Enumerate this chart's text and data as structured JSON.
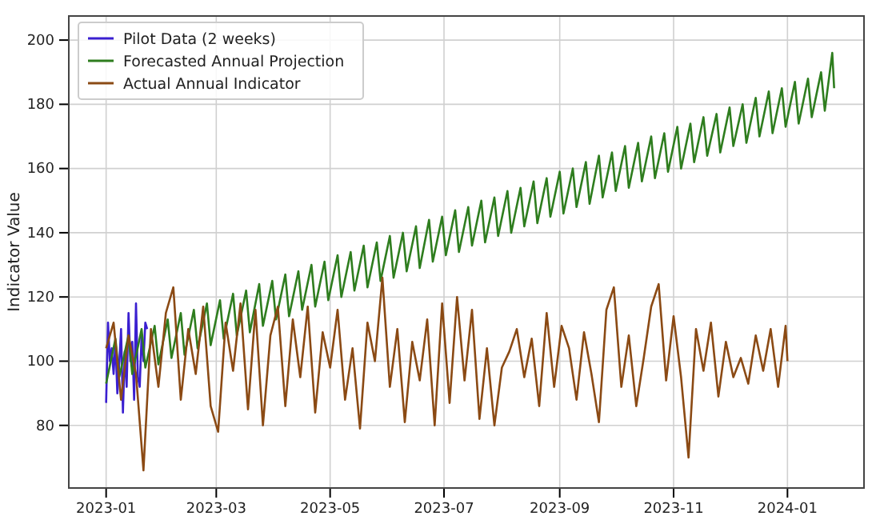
{
  "chart_data": {
    "type": "line",
    "ylabel": "Indicator Value",
    "xlim": [
      "2022-12-12",
      "2024-02-11"
    ],
    "ylim": [
      60.5,
      207.5
    ],
    "xticks": [
      "2023-01",
      "2023-03",
      "2023-05",
      "2023-07",
      "2023-09",
      "2023-11",
      "2024-01"
    ],
    "yticks": [
      80,
      100,
      120,
      140,
      160,
      180,
      200
    ],
    "grid": true,
    "legend": "top left",
    "line_style": "solid",
    "series": [
      {
        "name": "Pilot Data (2 weeks)",
        "color": "#3a1fd0",
        "x": [
          "2023-01-01",
          "2023-01-02",
          "2023-01-03",
          "2023-01-04",
          "2023-01-05",
          "2023-01-06",
          "2023-01-07",
          "2023-01-08",
          "2023-01-09",
          "2023-01-10",
          "2023-01-11",
          "2023-01-12",
          "2023-01-13",
          "2023-01-14",
          "2023-01-15",
          "2023-01-16",
          "2023-01-17",
          "2023-01-18",
          "2023-01-19",
          "2023-01-20",
          "2023-01-21",
          "2023-01-22",
          "2023-01-23"
        ],
        "values": [
          87,
          112,
          100,
          104,
          96,
          106,
          90,
          99,
          110,
          84,
          103,
          92,
          115,
          100,
          106,
          88,
          118,
          95,
          92,
          108,
          100,
          112,
          110
        ]
      },
      {
        "name": "Forecasted Annual Projection",
        "color": "#2e7d1e",
        "x": [
          "2023-01-01",
          "2023-01-06",
          "2023-01-08",
          "2023-01-13",
          "2023-01-15",
          "2023-01-20",
          "2023-01-22",
          "2023-01-27",
          "2023-01-29",
          "2023-02-03",
          "2023-02-05",
          "2023-02-10",
          "2023-02-12",
          "2023-02-17",
          "2023-02-19",
          "2023-02-24",
          "2023-02-26",
          "2023-03-03",
          "2023-03-05",
          "2023-03-10",
          "2023-03-12",
          "2023-03-17",
          "2023-03-19",
          "2023-03-24",
          "2023-03-26",
          "2023-03-31",
          "2023-04-02",
          "2023-04-07",
          "2023-04-09",
          "2023-04-14",
          "2023-04-16",
          "2023-04-21",
          "2023-04-23",
          "2023-04-28",
          "2023-04-30",
          "2023-05-05",
          "2023-05-07",
          "2023-05-12",
          "2023-05-14",
          "2023-05-19",
          "2023-05-21",
          "2023-05-26",
          "2023-05-28",
          "2023-06-02",
          "2023-06-04",
          "2023-06-09",
          "2023-06-11",
          "2023-06-16",
          "2023-06-18",
          "2023-06-23",
          "2023-06-25",
          "2023-06-30",
          "2023-07-02",
          "2023-07-07",
          "2023-07-09",
          "2023-07-14",
          "2023-07-16",
          "2023-07-21",
          "2023-07-23",
          "2023-07-28",
          "2023-07-30",
          "2023-08-04",
          "2023-08-06",
          "2023-08-11",
          "2023-08-13",
          "2023-08-18",
          "2023-08-20",
          "2023-08-25",
          "2023-08-27",
          "2023-09-01",
          "2023-09-03",
          "2023-09-08",
          "2023-09-10",
          "2023-09-15",
          "2023-09-17",
          "2023-09-22",
          "2023-09-24",
          "2023-09-29",
          "2023-10-01",
          "2023-10-06",
          "2023-10-08",
          "2023-10-13",
          "2023-10-15",
          "2023-10-20",
          "2023-10-22",
          "2023-10-27",
          "2023-10-29",
          "2023-11-03",
          "2023-11-05",
          "2023-11-10",
          "2023-11-12",
          "2023-11-17",
          "2023-11-19",
          "2023-11-24",
          "2023-11-26",
          "2023-12-01",
          "2023-12-03",
          "2023-12-08",
          "2023-12-10",
          "2023-12-15",
          "2023-12-17",
          "2023-12-22",
          "2023-12-24",
          "2023-12-29",
          "2023-12-31",
          "2024-01-05",
          "2024-01-07",
          "2024-01-12",
          "2024-01-14",
          "2024-01-19",
          "2024-01-21",
          "2024-01-25",
          "2024-01-26"
        ],
        "values": [
          93,
          107,
          95,
          108,
          96,
          110,
          98,
          111,
          99,
          113,
          101,
          115,
          102,
          116,
          104,
          118,
          105,
          119,
          107,
          121,
          108,
          122,
          109,
          124,
          111,
          125,
          113,
          127,
          114,
          128,
          116,
          130,
          117,
          131,
          119,
          133,
          120,
          134,
          122,
          136,
          123,
          137,
          125,
          139,
          126,
          140,
          128,
          142,
          129,
          144,
          131,
          145,
          133,
          147,
          134,
          148,
          136,
          150,
          137,
          151,
          139,
          153,
          140,
          154,
          142,
          156,
          143,
          157,
          145,
          159,
          146,
          160,
          148,
          162,
          149,
          164,
          151,
          165,
          153,
          167,
          154,
          168,
          156,
          170,
          157,
          171,
          159,
          173,
          160,
          174,
          162,
          176,
          164,
          177,
          165,
          179,
          167,
          180,
          168,
          182,
          170,
          184,
          171,
          185,
          173,
          187,
          174,
          188,
          176,
          190,
          178,
          196,
          185
        ]
      },
      {
        "name": "Actual Annual Indicator",
        "color": "#8b4a14",
        "x": [
          "2023-01-01",
          "2023-01-05",
          "2023-01-09",
          "2023-01-13",
          "2023-01-17",
          "2023-01-21",
          "2023-01-25",
          "2023-01-29",
          "2023-02-02",
          "2023-02-06",
          "2023-02-10",
          "2023-02-14",
          "2023-02-18",
          "2023-02-22",
          "2023-02-26",
          "2023-03-02",
          "2023-03-06",
          "2023-03-10",
          "2023-03-14",
          "2023-03-18",
          "2023-03-22",
          "2023-03-26",
          "2023-03-30",
          "2023-04-03",
          "2023-04-07",
          "2023-04-11",
          "2023-04-15",
          "2023-04-19",
          "2023-04-23",
          "2023-04-27",
          "2023-05-01",
          "2023-05-05",
          "2023-05-09",
          "2023-05-13",
          "2023-05-17",
          "2023-05-21",
          "2023-05-25",
          "2023-05-29",
          "2023-06-02",
          "2023-06-06",
          "2023-06-10",
          "2023-06-14",
          "2023-06-18",
          "2023-06-22",
          "2023-06-26",
          "2023-06-30",
          "2023-07-04",
          "2023-07-08",
          "2023-07-12",
          "2023-07-16",
          "2023-07-20",
          "2023-07-24",
          "2023-07-28",
          "2023-08-01",
          "2023-08-05",
          "2023-08-09",
          "2023-08-13",
          "2023-08-17",
          "2023-08-21",
          "2023-08-25",
          "2023-08-29",
          "2023-09-02",
          "2023-09-06",
          "2023-09-10",
          "2023-09-14",
          "2023-09-18",
          "2023-09-22",
          "2023-09-26",
          "2023-09-30",
          "2023-10-04",
          "2023-10-08",
          "2023-10-12",
          "2023-10-16",
          "2023-10-20",
          "2023-10-24",
          "2023-10-28",
          "2023-11-01",
          "2023-11-05",
          "2023-11-09",
          "2023-11-13",
          "2023-11-17",
          "2023-11-21",
          "2023-11-25",
          "2023-11-29",
          "2023-12-03",
          "2023-12-07",
          "2023-12-11",
          "2023-12-15",
          "2023-12-19",
          "2023-12-23",
          "2023-12-27",
          "2023-12-31",
          "2024-01-01"
        ],
        "values": [
          104,
          112,
          88,
          108,
          96,
          66,
          110,
          92,
          115,
          123,
          88,
          110,
          96,
          117,
          86,
          78,
          112,
          97,
          118,
          85,
          116,
          80,
          108,
          117,
          86,
          113,
          95,
          117,
          84,
          109,
          98,
          116,
          88,
          104,
          79,
          112,
          100,
          126,
          92,
          110,
          81,
          106,
          94,
          113,
          80,
          118,
          87,
          120,
          94,
          116,
          82,
          104,
          80,
          98,
          103,
          110,
          95,
          107,
          86,
          115,
          92,
          111,
          104,
          88,
          109,
          96,
          81,
          116,
          123,
          92,
          108,
          86,
          101,
          117,
          124,
          94,
          114,
          95,
          70,
          110,
          97,
          112,
          89,
          106,
          95,
          101,
          93,
          108,
          97,
          110,
          92,
          111,
          100
        ]
      }
    ]
  }
}
